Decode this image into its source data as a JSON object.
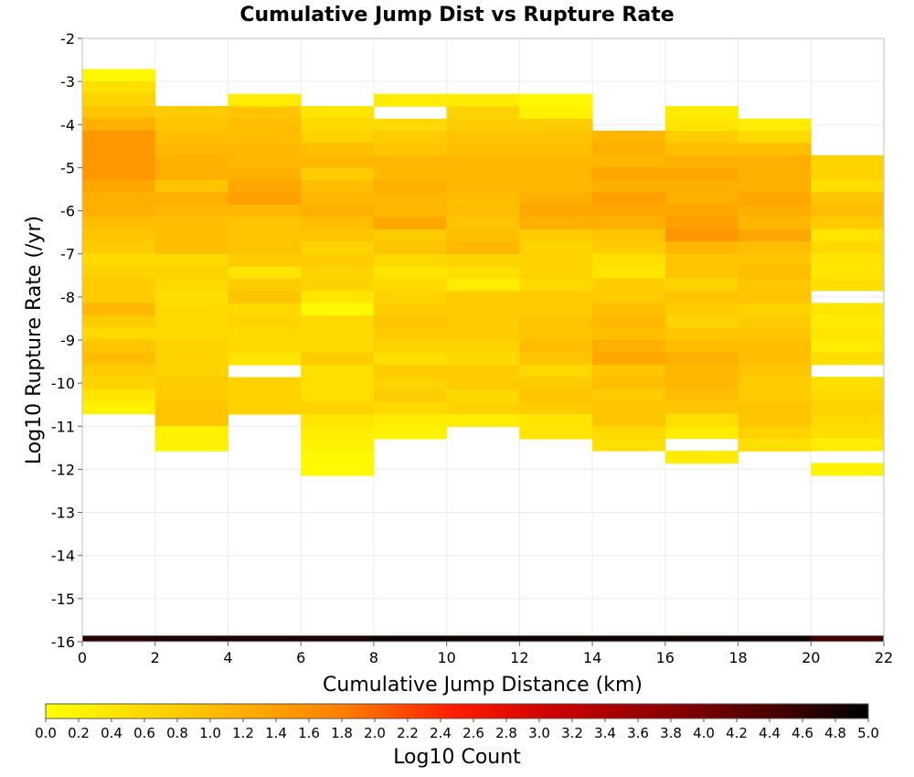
{
  "chart_data": {
    "type": "heatmap",
    "title": "Cumulative Jump Dist vs Rupture Rate",
    "xlabel": "Cumulative Jump Distance (km)",
    "ylabel": "Log10 Rupture Rate (/yr)",
    "xlim": [
      0,
      22
    ],
    "ylim": [
      -16,
      -2
    ],
    "x_ticks": [
      "0",
      "2",
      "4",
      "6",
      "8",
      "10",
      "12",
      "14",
      "16",
      "18",
      "20",
      "22"
    ],
    "y_ticks": [
      "-2",
      "-3",
      "-4",
      "-5",
      "-6",
      "-7",
      "-8",
      "-9",
      "-10",
      "-11",
      "-12",
      "-13",
      "-14",
      "-15",
      "-16"
    ],
    "x_bin_width": 2,
    "y_bin_height": 0.2857,
    "colorbar": {
      "label": "Log10 Count",
      "min": 0,
      "max": 5,
      "ticks": [
        "0.0",
        "0.2",
        "0.4",
        "0.6",
        "0.8",
        "1.0",
        "1.2",
        "1.4",
        "1.6",
        "1.8",
        "2.0",
        "2.2",
        "2.4",
        "2.6",
        "2.8",
        "3.0",
        "3.2",
        "3.4",
        "3.6",
        "3.8",
        "4.0",
        "4.2",
        "4.4",
        "4.6",
        "4.8",
        "5.0"
      ]
    },
    "grid": true,
    "columns": [
      {
        "x": 1,
        "top": -2.71,
        "values": [
          0.1,
          0.5,
          0.7,
          0.9,
          1.2,
          1.5,
          1.5,
          1.5,
          1.5,
          1.3,
          1.2,
          1.2,
          1.0,
          0.9,
          0.8,
          0.6,
          0.7,
          0.8,
          0.8,
          1.1,
          0.8,
          0.6,
          0.9,
          1.0,
          0.8,
          0.7,
          0.4,
          0.2
        ]
      },
      {
        "x": 3,
        "top": -3.57,
        "values": [
          0.8,
          0.9,
          1.0,
          1.1,
          1.2,
          1.2,
          0.9,
          1.2,
          1.1,
          1.0,
          1.0,
          1.0,
          0.6,
          0.7,
          0.6,
          0.5,
          0.6,
          0.6,
          0.6,
          0.7,
          0.7,
          0.7,
          0.8,
          0.8,
          0.9,
          0.9,
          0.2,
          0.2
        ]
      },
      {
        "x": 5,
        "top": -3.29,
        "values": [
          0.3,
          0.9,
          1.0,
          1.0,
          1.1,
          1.1,
          1.2,
          1.3,
          1.4,
          1.1,
          0.9,
          0.9,
          0.9,
          0.8,
          0.4,
          0.8,
          0.9,
          0.6,
          0.7,
          0.6,
          0.6,
          0.4,
          null,
          0.7,
          0.7,
          0.7
        ]
      },
      {
        "x": 7,
        "top": -3.57,
        "values": [
          0.4,
          0.6,
          0.7,
          1.0,
          1.1,
          0.8,
          1.0,
          1.1,
          1.2,
          1.0,
          0.9,
          0.7,
          0.8,
          0.7,
          0.7,
          0.4,
          0.1,
          0.6,
          0.6,
          0.6,
          0.8,
          0.5,
          0.5,
          0.5,
          0.7,
          0.4,
          0.3,
          0.2,
          0.1,
          0.1
        ]
      },
      {
        "x": 9,
        "top": -3.29,
        "values": [
          0.3,
          null,
          0.6,
          0.8,
          0.9,
          1.1,
          1.1,
          1.2,
          1.1,
          1.1,
          1.3,
          0.8,
          0.9,
          0.6,
          0.4,
          0.6,
          0.7,
          0.8,
          0.9,
          0.8,
          0.7,
          0.5,
          0.8,
          0.7,
          0.8,
          0.6,
          0.3,
          0.2
        ]
      },
      {
        "x": 11,
        "top": -3.29,
        "values": [
          0.3,
          0.7,
          0.8,
          0.9,
          1.0,
          1.1,
          1.1,
          1.1,
          1.0,
          1.0,
          0.9,
          1.0,
          1.1,
          0.7,
          0.5,
          0.3,
          0.8,
          0.8,
          0.8,
          0.8,
          0.7,
          0.6,
          0.8,
          0.8,
          0.6,
          0.7,
          0.3
        ]
      },
      {
        "x": 13,
        "top": -3.29,
        "values": [
          0.1,
          0.2,
          0.8,
          0.9,
          1.0,
          1.1,
          1.1,
          1.1,
          1.2,
          1.3,
          1.2,
          0.8,
          0.7,
          0.7,
          0.7,
          0.6,
          0.8,
          0.8,
          0.9,
          0.9,
          1.0,
          0.9,
          0.6,
          0.8,
          0.9,
          0.8,
          0.4,
          0.4
        ]
      },
      {
        "x": 15,
        "top": -4.14,
        "values": [
          1.1,
          1.2,
          1.1,
          1.3,
          1.2,
          1.4,
          1.3,
          1.2,
          0.9,
          0.8,
          0.5,
          0.4,
          0.8,
          0.8,
          1.0,
          1.1,
          1.0,
          1.2,
          1.3,
          0.9,
          1.0,
          0.8,
          0.9,
          0.9,
          0.6,
          0.5
        ]
      },
      {
        "x": 17,
        "top": -3.57,
        "values": [
          0.3,
          0.4,
          0.8,
          1.0,
          1.2,
          1.3,
          1.2,
          1.2,
          1.3,
          1.4,
          1.5,
          1.1,
          0.9,
          0.9,
          0.7,
          0.9,
          0.8,
          0.7,
          0.9,
          1.0,
          1.2,
          1.1,
          1.1,
          1.0,
          0.9,
          0.5,
          0.3,
          null,
          0.3
        ]
      },
      {
        "x": 19,
        "top": -3.86,
        "values": [
          0.3,
          0.6,
          1.0,
          1.2,
          1.2,
          1.2,
          1.3,
          1.2,
          1.1,
          1.3,
          1.0,
          0.9,
          1.0,
          0.9,
          0.9,
          0.7,
          0.8,
          0.9,
          1.0,
          1.0,
          0.9,
          0.8,
          0.8,
          0.9,
          0.9,
          0.7,
          0.5
        ]
      },
      {
        "x": 21,
        "top": -4.71,
        "values": [
          0.7,
          0.7,
          0.5,
          0.9,
          1.0,
          0.8,
          0.4,
          0.6,
          0.4,
          0.4,
          0.5,
          null,
          0.4,
          0.3,
          0.4,
          0.3,
          0.5,
          null,
          0.5,
          0.6,
          0.7,
          0.6,
          0.5,
          0.3,
          null,
          0.2
        ]
      }
    ],
    "bottom_row": {
      "y_top": -15.86,
      "y_bottom": -16.0,
      "values": [
        4.7,
        4.8,
        4.8,
        4.8,
        4.9,
        4.9,
        4.9,
        4.9,
        4.9,
        4.9,
        4.5
      ]
    }
  }
}
